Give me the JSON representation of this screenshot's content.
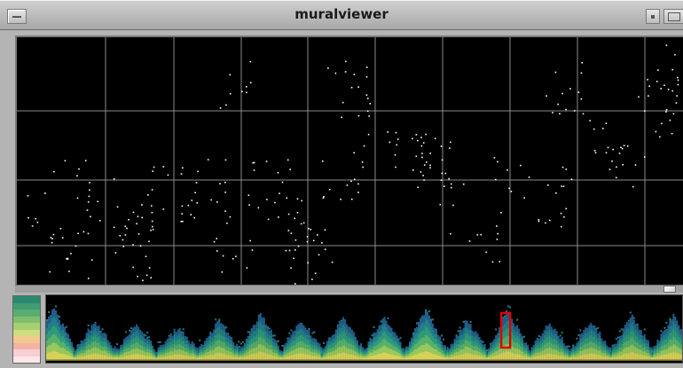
{
  "window": {
    "title": "muralviewer"
  },
  "colors": {
    "background": "#000000",
    "grid": "#8a8a8a",
    "points": "#ffffff",
    "viewport_marker": "#e00000",
    "legend_scale": [
      "#2a8a6e",
      "#3f9c73",
      "#5aad72",
      "#7ebf6f",
      "#a7cf70",
      "#cfdc82",
      "#f2c98f",
      "#f3b3a3",
      "#f7cfd4",
      "#fbe7ea"
    ],
    "density_scale": [
      "#1f5f8a",
      "#237f86",
      "#2f9a7a",
      "#58b06a",
      "#98c85c",
      "#d7d05a"
    ]
  },
  "icons": {
    "window_menu": "window-menu-icon",
    "minimize": "minimize-icon",
    "maximize": "maximize-icon"
  },
  "detail_view": {
    "grid_on": true,
    "grid_columns": 10,
    "grid_rows": 4
  },
  "overview": {
    "peak_count": 16,
    "viewport_peak_index": 11
  }
}
